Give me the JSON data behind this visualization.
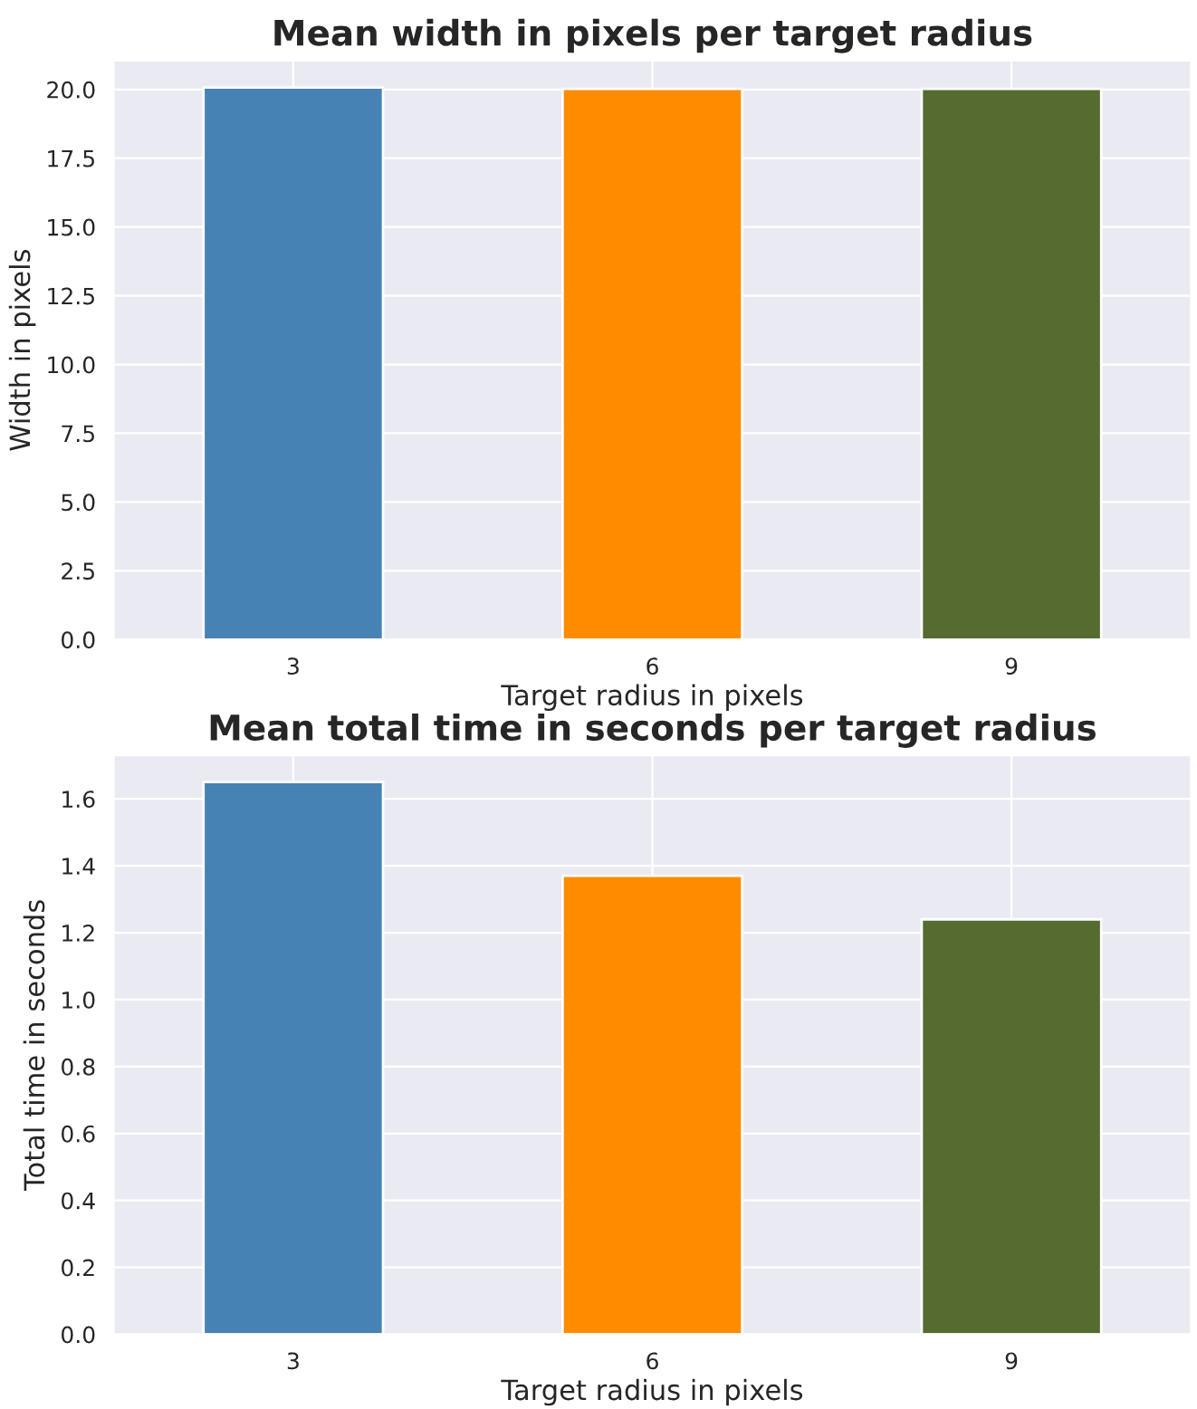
{
  "chart_data": [
    {
      "type": "bar",
      "title": "Mean width in pixels per target radius",
      "xlabel": "Target radius in pixels",
      "ylabel": "Width in pixels",
      "categories": [
        "3",
        "6",
        "9"
      ],
      "values": [
        20.07,
        20.02,
        20.02
      ],
      "colors": [
        "#4682b4",
        "#ff8c00",
        "#556b2f"
      ],
      "ylim": [
        0,
        21.05
      ],
      "yticks": [
        {
          "value": 0,
          "label": "0.0"
        },
        {
          "value": 2.5,
          "label": "2.5"
        },
        {
          "value": 5,
          "label": "5.0"
        },
        {
          "value": 7.5,
          "label": "7.5"
        },
        {
          "value": 10,
          "label": "10.0"
        },
        {
          "value": 12.5,
          "label": "12.5"
        },
        {
          "value": 15,
          "label": "15.0"
        },
        {
          "value": 17.5,
          "label": "17.5"
        },
        {
          "value": 20,
          "label": "20.0"
        }
      ],
      "grid": true,
      "legend": false
    },
    {
      "type": "bar",
      "title": "Mean total time in seconds per target radius",
      "xlabel": "Target radius in pixels",
      "ylabel": "Total time in seconds",
      "categories": [
        "3",
        "6",
        "9"
      ],
      "values": [
        1.65,
        1.37,
        1.24
      ],
      "colors": [
        "#4682b4",
        "#ff8c00",
        "#556b2f"
      ],
      "ylim": [
        0,
        1.73
      ],
      "yticks": [
        {
          "value": 0,
          "label": "0.0"
        },
        {
          "value": 0.2,
          "label": "0.2"
        },
        {
          "value": 0.4,
          "label": "0.4"
        },
        {
          "value": 0.6,
          "label": "0.6"
        },
        {
          "value": 0.8,
          "label": "0.8"
        },
        {
          "value": 1.0,
          "label": "1.0"
        },
        {
          "value": 1.2,
          "label": "1.2"
        },
        {
          "value": 1.4,
          "label": "1.4"
        },
        {
          "value": 1.6,
          "label": "1.6"
        }
      ],
      "grid": true,
      "legend": false
    }
  ]
}
